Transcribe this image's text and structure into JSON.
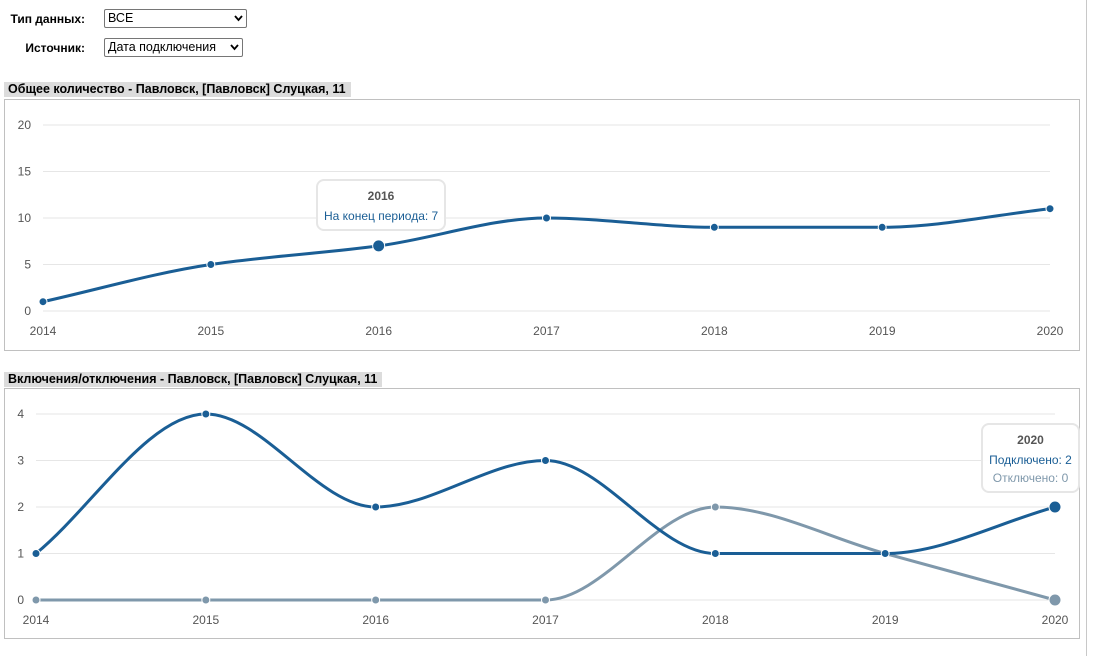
{
  "filters": {
    "data_type": {
      "label": "Тип данных:",
      "value": "ВСЕ"
    },
    "source": {
      "label": "Источник:",
      "value": "Дата подключения"
    }
  },
  "colors": {
    "series_main": "#1a5e95",
    "series_off": "#7f98ab",
    "grid": "#e6e6e6"
  },
  "chart_data": [
    {
      "type": "line",
      "title": "Общее количество - Павловск, [Павловск] Слуцкая, 11",
      "x": [
        "2014",
        "2015",
        "2016",
        "2017",
        "2018",
        "2019",
        "2020"
      ],
      "ylim": [
        0,
        20
      ],
      "yticks": [
        0,
        5,
        10,
        15,
        20
      ],
      "grid": true,
      "series": [
        {
          "name": "На конец периода",
          "values": [
            1,
            5,
            7,
            10,
            9,
            9,
            11
          ],
          "color": "#1a5e95"
        }
      ],
      "tooltip": {
        "title": "2016",
        "lines": [
          {
            "text": "На конец периода: 7",
            "color": "#1a5e95"
          }
        ]
      }
    },
    {
      "type": "line",
      "title": "Включения/отключения - Павловск, [Павловск] Слуцкая, 11",
      "x": [
        "2014",
        "2015",
        "2016",
        "2017",
        "2018",
        "2019",
        "2020"
      ],
      "ylim": [
        0,
        4
      ],
      "yticks": [
        0,
        1,
        2,
        3,
        4
      ],
      "grid": true,
      "series": [
        {
          "name": "Подключено",
          "values": [
            1,
            4,
            2,
            3,
            1,
            1,
            2
          ],
          "color": "#1a5e95"
        },
        {
          "name": "Отключено",
          "values": [
            0,
            0,
            0,
            0,
            2,
            1,
            0
          ],
          "color": "#7f98ab"
        }
      ],
      "tooltip": {
        "title": "2020",
        "lines": [
          {
            "text": "Подключено: 2",
            "color": "#1a5e95"
          },
          {
            "text": "Отключено: 0",
            "color": "#7f98ab"
          }
        ]
      }
    }
  ]
}
